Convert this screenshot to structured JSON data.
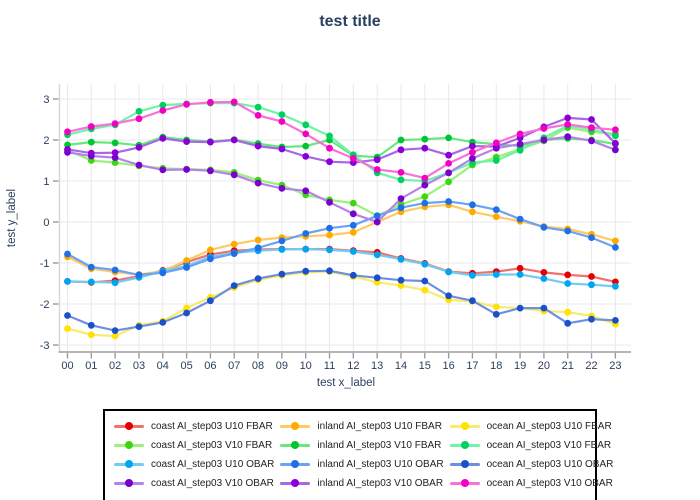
{
  "title": "test title",
  "colors": {
    "title": "#2a3f5f",
    "tick_label": "#2a3f5f",
    "grid": "#e9e9ed",
    "axis_line": "#b5b5b5",
    "tick_mark": "#9a9a9a",
    "legend_border": "#000000",
    "background": "#ffffff"
  },
  "chart_data": {
    "type": "line",
    "title": "test title",
    "xlabel": "test x_label",
    "ylabel": "test y_label",
    "x_ticklabels": [
      "00",
      "01",
      "02",
      "03",
      "04",
      "05",
      "06",
      "07",
      "08",
      "09",
      "10",
      "11",
      "12",
      "13",
      "14",
      "15",
      "16",
      "17",
      "18",
      "19",
      "20",
      "21",
      "22",
      "23"
    ],
    "y_ticks": [
      -3,
      -2,
      -1,
      0,
      1,
      2,
      3
    ],
    "ylim": [
      -3.17,
      3.36
    ],
    "grid": true,
    "legend_position": "bottom",
    "marker_style": "circle",
    "series": [
      {
        "name": "coast AI_step03 U10 FBAR",
        "marker_color": "#e60000",
        "line_color": "#f1716b",
        "values": [
          -1.45,
          -1.47,
          -1.43,
          -1.32,
          -1.18,
          -0.98,
          -0.79,
          -0.7,
          -0.67,
          -0.66,
          -0.66,
          -0.66,
          -0.7,
          -0.74,
          -0.89,
          -1.01,
          -1.21,
          -1.25,
          -1.21,
          -1.13,
          -1.23,
          -1.29,
          -1.33,
          -1.46
        ]
      },
      {
        "name": "inland AI_step03 U10 FBAR",
        "marker_color": "#ffaa00",
        "line_color": "#ffc966",
        "values": [
          -0.85,
          -1.14,
          -1.22,
          -1.28,
          -1.2,
          -0.94,
          -0.68,
          -0.54,
          -0.44,
          -0.38,
          -0.35,
          -0.32,
          -0.25,
          0.0,
          0.25,
          0.37,
          0.42,
          0.25,
          0.13,
          0.02,
          -0.11,
          -0.17,
          -0.3,
          -0.46
        ]
      },
      {
        "name": "ocean AI_step03 U10 FBAR",
        "marker_color": "#ffe200",
        "line_color": "#f7ec6e",
        "values": [
          -2.6,
          -2.75,
          -2.78,
          -2.52,
          -2.42,
          -2.1,
          -1.84,
          -1.6,
          -1.41,
          -1.3,
          -1.23,
          -1.21,
          -1.33,
          -1.47,
          -1.55,
          -1.66,
          -1.9,
          -1.94,
          -2.07,
          -2.1,
          -2.17,
          -2.2,
          -2.29,
          -2.49
        ]
      },
      {
        "name": "coast AI_step03 V10 FBAR",
        "marker_color": "#3fd60f",
        "line_color": "#9cf07e",
        "values": [
          1.75,
          1.5,
          1.45,
          1.37,
          1.31,
          1.29,
          1.27,
          1.21,
          1.02,
          0.9,
          0.66,
          0.54,
          0.46,
          0.15,
          0.43,
          0.62,
          0.98,
          1.39,
          1.58,
          1.78,
          1.98,
          2.3,
          2.2,
          2.15
        ]
      },
      {
        "name": "inland AI_step03 V10 FBAR",
        "marker_color": "#00c432",
        "line_color": "#66e87f",
        "values": [
          1.88,
          1.95,
          1.93,
          1.87,
          2.07,
          2.0,
          1.96,
          2.01,
          1.91,
          1.83,
          1.85,
          2.0,
          1.62,
          1.58,
          2.0,
          2.02,
          2.05,
          1.95,
          1.9,
          1.85,
          2.0,
          2.04,
          2.0,
          1.9
        ]
      },
      {
        "name": "ocean AI_step03 V10 FBAR",
        "marker_color": "#00d060",
        "line_color": "#70f2a8",
        "values": [
          2.13,
          2.27,
          2.37,
          2.7,
          2.85,
          2.88,
          2.9,
          2.9,
          2.8,
          2.62,
          2.37,
          2.1,
          1.64,
          1.2,
          1.03,
          1.0,
          1.2,
          1.45,
          1.5,
          1.75,
          2.05,
          2.35,
          2.26,
          2.1
        ]
      },
      {
        "name": "coast AI_step03 U10 OBAR",
        "marker_color": "#00a5f0",
        "line_color": "#72ccf2",
        "values": [
          -1.45,
          -1.46,
          -1.48,
          -1.35,
          -1.2,
          -1.07,
          -0.85,
          -0.75,
          -0.7,
          -0.67,
          -0.66,
          -0.68,
          -0.72,
          -0.8,
          -0.91,
          -1.03,
          -1.22,
          -1.3,
          -1.28,
          -1.28,
          -1.38,
          -1.5,
          -1.53,
          -1.57
        ]
      },
      {
        "name": "inland AI_step03 U10 OBAR",
        "marker_color": "#1f6fe8",
        "line_color": "#6ba3f2",
        "values": [
          -0.78,
          -1.1,
          -1.17,
          -1.29,
          -1.24,
          -1.11,
          -0.9,
          -0.77,
          -0.63,
          -0.46,
          -0.28,
          -0.15,
          -0.08,
          0.15,
          0.35,
          0.46,
          0.5,
          0.42,
          0.3,
          0.07,
          -0.13,
          -0.22,
          -0.38,
          -0.62
        ]
      },
      {
        "name": "ocean AI_step03 U10 OBAR",
        "marker_color": "#1a50cc",
        "line_color": "#6e8fe0",
        "values": [
          -2.28,
          -2.52,
          -2.65,
          -2.55,
          -2.45,
          -2.22,
          -1.92,
          -1.55,
          -1.38,
          -1.27,
          -1.2,
          -1.19,
          -1.3,
          -1.36,
          -1.42,
          -1.44,
          -1.8,
          -1.92,
          -2.25,
          -2.1,
          -2.1,
          -2.47,
          -2.37,
          -2.4
        ]
      },
      {
        "name": "coast AI_step03 V10 OBAR",
        "marker_color": "#7a00cc",
        "line_color": "#b383ea",
        "values": [
          1.7,
          1.61,
          1.57,
          1.39,
          1.27,
          1.28,
          1.25,
          1.15,
          0.95,
          0.82,
          0.76,
          0.48,
          0.2,
          0.0,
          0.57,
          0.9,
          1.2,
          1.55,
          1.8,
          1.9,
          2.0,
          2.08,
          1.98,
          1.76
        ]
      },
      {
        "name": "inland AI_step03 V10 OBAR",
        "marker_color": "#8800d6",
        "line_color": "#a966e8",
        "values": [
          1.77,
          1.68,
          1.69,
          1.82,
          2.04,
          1.96,
          1.95,
          2.0,
          1.85,
          1.78,
          1.6,
          1.47,
          1.45,
          1.52,
          1.76,
          1.8,
          1.63,
          1.85,
          1.84,
          2.05,
          2.32,
          2.54,
          2.5,
          1.92
        ]
      },
      {
        "name": "ocean AI_step03 V10 OBAR",
        "marker_color": "#f202c0",
        "line_color": "#fa70d8",
        "values": [
          2.2,
          2.33,
          2.4,
          2.52,
          2.72,
          2.87,
          2.92,
          2.93,
          2.6,
          2.45,
          2.15,
          1.8,
          1.55,
          1.28,
          1.21,
          1.07,
          1.43,
          1.7,
          1.93,
          2.15,
          2.28,
          2.38,
          2.3,
          2.25
        ]
      }
    ]
  }
}
